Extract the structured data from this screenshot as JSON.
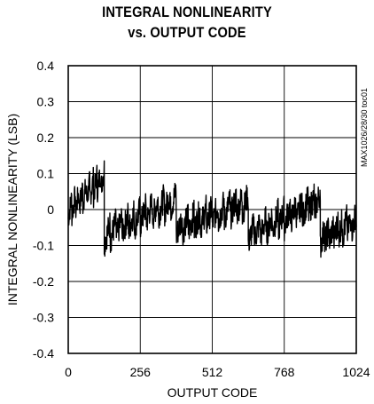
{
  "chart_data": {
    "type": "line",
    "title_line1": "INTEGRAL NONLINEARITY",
    "title_line2": "vs. OUTPUT CODE",
    "xlabel": "OUTPUT CODE",
    "ylabel": "INTEGRAL NONLINEARITY (LSB)",
    "side_note": "MAX1026/28/30 toc01",
    "xlim": [
      0,
      1024
    ],
    "ylim": [
      -0.4,
      0.4
    ],
    "xticks": [
      0,
      256,
      512,
      768,
      1024
    ],
    "xtick_labels": [
      "0",
      "256",
      "512",
      "768",
      "1024"
    ],
    "yticks": [
      0.4,
      0.3,
      0.2,
      0.1,
      0,
      -0.1,
      -0.2,
      -0.3,
      -0.4
    ],
    "ytick_labels": [
      "0.4",
      "0.3",
      "0.2",
      "0.1",
      "0",
      "-0.1",
      "-0.2",
      "-0.3",
      "-0.4"
    ],
    "grid": true,
    "line_color": "#000000",
    "series": [
      {
        "segments": [
          {
            "x0": 0,
            "x1": 128,
            "y_start": 0.0,
            "y_end": 0.09,
            "sawtooth": 10,
            "noise": 0.035
          },
          {
            "x0": 128,
            "x1": 384,
            "y_start": -0.07,
            "y_end": 0.03,
            "sawtooth": 12,
            "noise": 0.04
          },
          {
            "x0": 384,
            "x1": 640,
            "y_start": -0.05,
            "y_end": 0.02,
            "sawtooth": 12,
            "noise": 0.04
          },
          {
            "x0": 640,
            "x1": 896,
            "y_start": -0.07,
            "y_end": 0.025,
            "sawtooth": 12,
            "noise": 0.04
          },
          {
            "x0": 896,
            "x1": 1024,
            "y_start": -0.08,
            "y_end": -0.03,
            "sawtooth": 8,
            "noise": 0.04
          }
        ]
      }
    ]
  }
}
